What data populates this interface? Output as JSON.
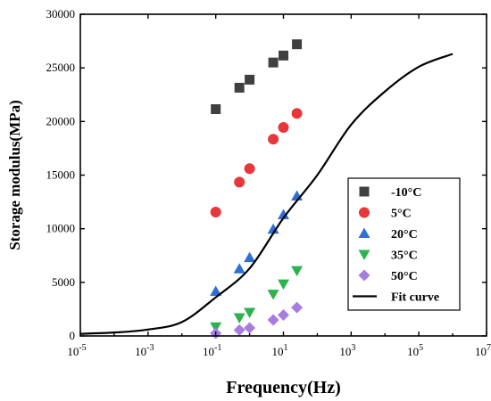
{
  "chart_data": {
    "type": "scatter",
    "title": "",
    "xlabel": "Frequency(Hz)",
    "ylabel": "Storage modulus(MPa)",
    "xscale": "log",
    "xlim_exp": [
      -5,
      7
    ],
    "xticks": [
      {
        "label": "10",
        "exp": "-5",
        "value": -5
      },
      {
        "label": "10",
        "exp": "-3",
        "value": -3
      },
      {
        "label": "10",
        "exp": "-1",
        "value": -1
      },
      {
        "label": "10",
        "exp": "1",
        "value": 1
      },
      {
        "label": "10",
        "exp": "3",
        "value": 3
      },
      {
        "label": "10",
        "exp": "5",
        "value": 5
      },
      {
        "label": "10",
        "exp": "7",
        "value": 7
      }
    ],
    "ylim": [
      0,
      30000
    ],
    "yticks": [
      {
        "label": "0",
        "value": 0
      },
      {
        "label": "5000",
        "value": 5000
      },
      {
        "label": "10000",
        "value": 10000
      },
      {
        "label": "15000",
        "value": 15000
      },
      {
        "label": "20000",
        "value": 20000
      },
      {
        "label": "25000",
        "value": 25000
      },
      {
        "label": "30000",
        "value": 30000
      }
    ],
    "legend_position": "right",
    "grid": false,
    "series": [
      {
        "name": "-10°C",
        "marker": "square",
        "color": "#404040",
        "x": [
          0.1,
          0.5,
          1,
          5,
          10,
          25
        ],
        "y": [
          21150,
          23150,
          23900,
          25500,
          26150,
          27200
        ]
      },
      {
        "name": "5°C",
        "marker": "circle",
        "color": "#e8373a",
        "x": [
          0.1,
          0.5,
          1,
          5,
          10,
          25
        ],
        "y": [
          11550,
          14350,
          15600,
          18350,
          19450,
          20750
        ]
      },
      {
        "name": "20°C",
        "marker": "triangle-up",
        "color": "#2e6fd6",
        "x": [
          0.1,
          0.5,
          1,
          5,
          10,
          25
        ],
        "y": [
          4150,
          6250,
          7300,
          9950,
          11300,
          13050
        ]
      },
      {
        "name": "35°C",
        "marker": "triangle-down",
        "color": "#2eb24f",
        "x": [
          0.1,
          0.5,
          1,
          5,
          10,
          25
        ],
        "y": [
          850,
          1700,
          2200,
          3900,
          4850,
          6100
        ]
      },
      {
        "name": "50°C",
        "marker": "diamond",
        "color": "#a77de0",
        "x": [
          0.1,
          0.5,
          1,
          5,
          10,
          25
        ],
        "y": [
          250,
          550,
          750,
          1500,
          1950,
          2650
        ]
      },
      {
        "name": "Fit curve",
        "type": "line",
        "color": "#000000",
        "x": [
          1e-05,
          0.0001,
          0.001,
          0.01,
          0.1,
          1,
          10,
          100,
          1000,
          10000,
          100000,
          1000000
        ],
        "y": [
          200,
          320,
          600,
          1300,
          3600,
          6300,
          11000,
          15000,
          19700,
          22800,
          25100,
          26300
        ]
      }
    ]
  }
}
